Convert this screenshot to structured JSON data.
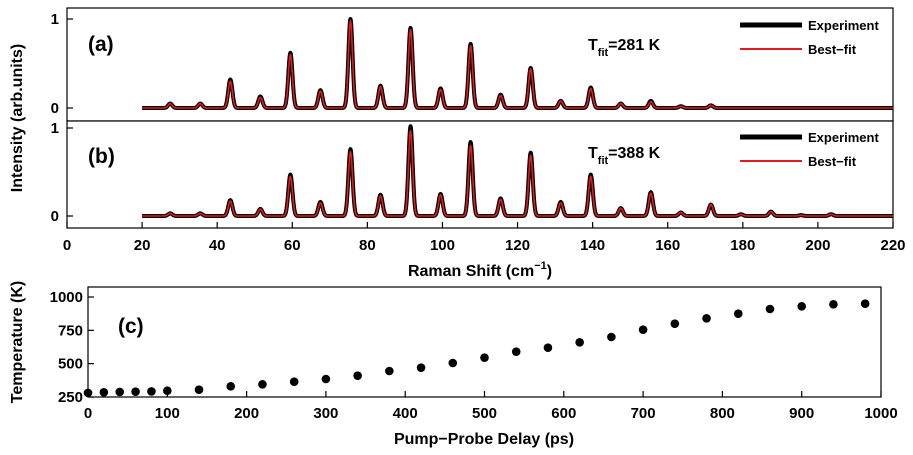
{
  "chart_data": [
    {
      "panel": "(a)",
      "type": "line",
      "xlabel": "",
      "ylabel": "",
      "xlim": [
        0,
        220
      ],
      "ylim": [
        -0.05,
        1.05
      ],
      "xticks": [],
      "yticks": [
        "0",
        "1"
      ],
      "annotation": {
        "main": "T",
        "sub": "fit",
        "rest": "=281 K"
      },
      "legend": {
        "placement": "top-right",
        "entries": [
          "Experiment",
          "Best−fit"
        ]
      },
      "series": [
        {
          "name": "Experiment",
          "color": "#000000",
          "x_range": [
            20,
            220
          ],
          "peaks": [
            [
              27.5,
              0.05
            ],
            [
              35.5,
              0.05
            ],
            [
              43.5,
              0.32
            ],
            [
              51.5,
              0.13
            ],
            [
              59.5,
              0.62
            ],
            [
              67.5,
              0.2
            ],
            [
              75.5,
              1.0
            ],
            [
              83.5,
              0.25
            ],
            [
              91.5,
              0.9
            ],
            [
              99.5,
              0.22
            ],
            [
              107.5,
              0.72
            ],
            [
              115.5,
              0.15
            ],
            [
              123.5,
              0.45
            ],
            [
              131.5,
              0.08
            ],
            [
              139.5,
              0.23
            ],
            [
              147.5,
              0.05
            ],
            [
              155.5,
              0.08
            ],
            [
              163.5,
              0.02
            ],
            [
              171.5,
              0.03
            ]
          ]
        },
        {
          "name": "Best−fit",
          "color": "#e41a1c",
          "x_range": [
            20,
            220
          ],
          "peaks": [
            [
              27.5,
              0.05
            ],
            [
              35.5,
              0.05
            ],
            [
              43.5,
              0.3
            ],
            [
              51.5,
              0.12
            ],
            [
              59.5,
              0.6
            ],
            [
              67.5,
              0.19
            ],
            [
              75.5,
              0.98
            ],
            [
              83.5,
              0.24
            ],
            [
              91.5,
              0.88
            ],
            [
              99.5,
              0.21
            ],
            [
              107.5,
              0.7
            ],
            [
              115.5,
              0.14
            ],
            [
              123.5,
              0.44
            ],
            [
              131.5,
              0.08
            ],
            [
              139.5,
              0.22
            ],
            [
              147.5,
              0.05
            ],
            [
              155.5,
              0.07
            ],
            [
              163.5,
              0.02
            ],
            [
              171.5,
              0.03
            ]
          ]
        }
      ]
    },
    {
      "panel": "(b)",
      "type": "line",
      "xlabel": "Raman Shift (cm⁻¹)",
      "xlabel_main": "Raman Shift (cm",
      "xlabel_sup": "−1",
      "xlabel_end": ")",
      "ylabel": "",
      "xlim": [
        0,
        220
      ],
      "ylim": [
        -0.05,
        1.05
      ],
      "xticks": [
        0,
        20,
        40,
        60,
        80,
        100,
        120,
        140,
        160,
        180,
        200,
        220
      ],
      "yticks": [
        "0",
        "1"
      ],
      "annotation": {
        "main": "T",
        "sub": "fit",
        "rest": "=388 K"
      },
      "legend": {
        "placement": "top-right",
        "entries": [
          "Experiment",
          "Best−fit"
        ]
      },
      "series": [
        {
          "name": "Experiment",
          "color": "#000000",
          "x_range": [
            20,
            220
          ],
          "peaks": [
            [
              27.5,
              0.03
            ],
            [
              35.5,
              0.03
            ],
            [
              43.5,
              0.18
            ],
            [
              51.5,
              0.08
            ],
            [
              59.5,
              0.47
            ],
            [
              67.5,
              0.16
            ],
            [
              75.5,
              0.76
            ],
            [
              83.5,
              0.24
            ],
            [
              91.5,
              1.02
            ],
            [
              99.5,
              0.25
            ],
            [
              107.5,
              0.84
            ],
            [
              115.5,
              0.2
            ],
            [
              123.5,
              0.72
            ],
            [
              131.5,
              0.16
            ],
            [
              139.5,
              0.47
            ],
            [
              147.5,
              0.09
            ],
            [
              155.5,
              0.27
            ],
            [
              163.5,
              0.04
            ],
            [
              171.5,
              0.13
            ],
            [
              179.5,
              0.02
            ],
            [
              187.5,
              0.05
            ],
            [
              195.5,
              0.01
            ],
            [
              203.5,
              0.02
            ]
          ]
        },
        {
          "name": "Best−fit",
          "color": "#e41a1c",
          "x_range": [
            20,
            220
          ],
          "peaks": [
            [
              27.5,
              0.03
            ],
            [
              35.5,
              0.03
            ],
            [
              43.5,
              0.17
            ],
            [
              51.5,
              0.08
            ],
            [
              59.5,
              0.45
            ],
            [
              67.5,
              0.15
            ],
            [
              75.5,
              0.73
            ],
            [
              83.5,
              0.23
            ],
            [
              91.5,
              0.97
            ],
            [
              99.5,
              0.24
            ],
            [
              107.5,
              0.8
            ],
            [
              115.5,
              0.19
            ],
            [
              123.5,
              0.69
            ],
            [
              131.5,
              0.15
            ],
            [
              139.5,
              0.45
            ],
            [
              147.5,
              0.09
            ],
            [
              155.5,
              0.26
            ],
            [
              163.5,
              0.04
            ],
            [
              171.5,
              0.13
            ],
            [
              179.5,
              0.02
            ],
            [
              187.5,
              0.05
            ],
            [
              195.5,
              0.01
            ],
            [
              203.5,
              0.02
            ]
          ]
        }
      ]
    },
    {
      "panel": "(c)",
      "type": "scatter",
      "xlabel": "Pump−Probe Delay (ps)",
      "ylabel": "Temperature (K)",
      "xlim": [
        0,
        1000
      ],
      "ylim": [
        250,
        1000
      ],
      "xticks": [
        0,
        100,
        200,
        300,
        400,
        500,
        600,
        700,
        800,
        900,
        1000
      ],
      "yticks": [
        250,
        500,
        750,
        1000
      ],
      "series": [
        {
          "name": "",
          "color": "#000000",
          "x": [
            0,
            20,
            40,
            60,
            80,
            100,
            140,
            180,
            220,
            260,
            300,
            340,
            380,
            420,
            460,
            500,
            540,
            580,
            620,
            660,
            700,
            740,
            780,
            820,
            860,
            900,
            940,
            980
          ],
          "y": [
            281,
            285,
            288,
            290,
            292,
            297,
            305,
            330,
            345,
            365,
            385,
            410,
            445,
            470,
            505,
            545,
            590,
            620,
            660,
            700,
            755,
            800,
            840,
            875,
            910,
            930,
            945,
            950
          ]
        }
      ]
    }
  ],
  "shared": {
    "ylabel": "Intensity (arb.units)"
  }
}
